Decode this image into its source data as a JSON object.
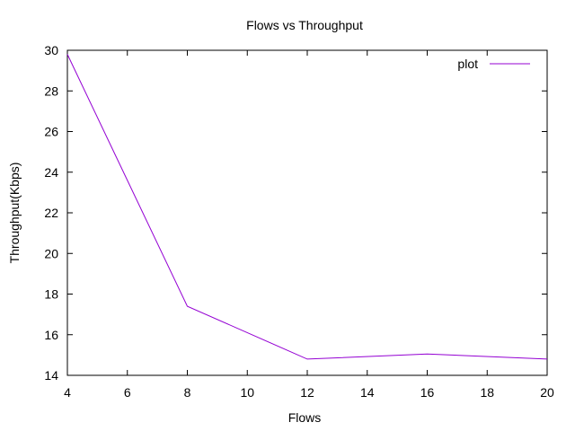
{
  "chart_data": {
    "type": "line",
    "title": "Flows vs Throughput",
    "xlabel": "Flows",
    "ylabel": "Throughput(Kbps)",
    "xlim": [
      4,
      20
    ],
    "ylim": [
      14,
      30
    ],
    "xticks": [
      4,
      6,
      8,
      10,
      12,
      14,
      16,
      18,
      20
    ],
    "yticks": [
      14,
      16,
      18,
      20,
      22,
      24,
      26,
      28,
      30
    ],
    "grid": false,
    "legend_position": "top-right",
    "series": [
      {
        "name": "plot",
        "color": "#9400d3",
        "x": [
          4,
          8,
          12,
          16,
          20
        ],
        "y": [
          29.8,
          17.4,
          14.8,
          15.05,
          14.8
        ]
      }
    ]
  }
}
